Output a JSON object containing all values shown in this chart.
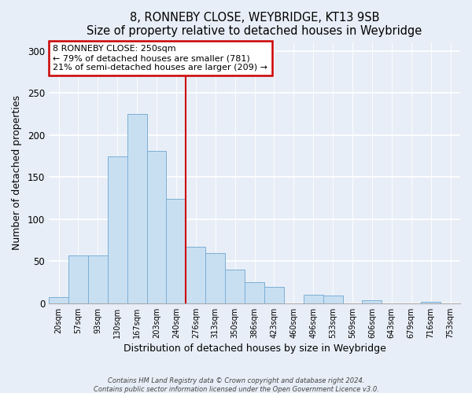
{
  "title": "8, RONNEBY CLOSE, WEYBRIDGE, KT13 9SB",
  "subtitle": "Size of property relative to detached houses in Weybridge",
  "xlabel": "Distribution of detached houses by size in Weybridge",
  "ylabel": "Number of detached properties",
  "bar_labels": [
    "20sqm",
    "57sqm",
    "93sqm",
    "130sqm",
    "167sqm",
    "203sqm",
    "240sqm",
    "276sqm",
    "313sqm",
    "350sqm",
    "386sqm",
    "423sqm",
    "460sqm",
    "496sqm",
    "533sqm",
    "569sqm",
    "606sqm",
    "643sqm",
    "679sqm",
    "716sqm",
    "753sqm"
  ],
  "bar_heights": [
    7,
    57,
    57,
    175,
    225,
    181,
    124,
    67,
    60,
    40,
    25,
    19,
    0,
    10,
    9,
    0,
    4,
    0,
    0,
    2,
    0
  ],
  "bar_color": "#c8dff2",
  "bar_edge_color": "#7bafd4",
  "vline_color": "#cc0000",
  "annotation_title": "8 RONNEBY CLOSE: 250sqm",
  "annotation_line1": "← 79% of detached houses are smaller (781)",
  "annotation_line2": "21% of semi-detached houses are larger (209) →",
  "annotation_box_color": "#ffffff",
  "annotation_box_edge": "#cc0000",
  "bg_color": "#e8eef7",
  "plot_bg_color": "#e8eef7",
  "ylim": [
    0,
    310
  ],
  "footer1": "Contains HM Land Registry data © Crown copyright and database right 2024.",
  "footer2": "Contains public sector information licensed under the Open Government Licence v3.0."
}
